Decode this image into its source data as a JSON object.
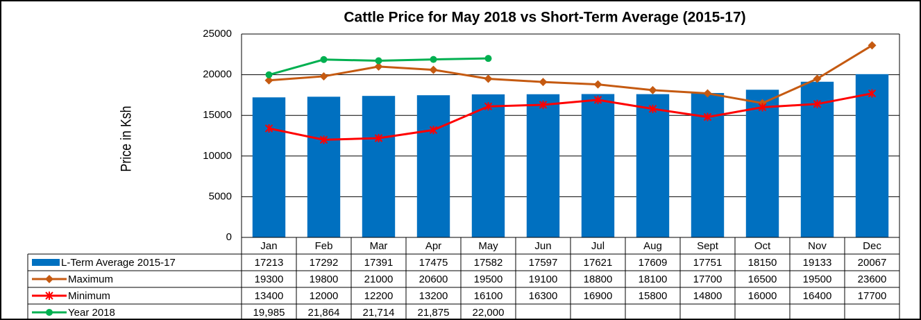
{
  "chart_data": {
    "type": "bar_line_table",
    "title": "Cattle Price for May  2018 vs Short-Term Average (2015-17)",
    "ylabel": "Price in Ksh",
    "categories": [
      "Jan",
      "Feb",
      "Mar",
      "Apr",
      "May",
      "Jun",
      "Jul",
      "Aug",
      "Sept",
      "Oct",
      "Nov",
      "Dec"
    ],
    "ylim": [
      0,
      25000
    ],
    "yticks": [
      0,
      5000,
      10000,
      15000,
      20000,
      25000
    ],
    "grid": true,
    "series": [
      {
        "name": "L-Term  Average 2015-17",
        "type": "bar",
        "color": "#0070c0",
        "values": [
          17213,
          17292,
          17391,
          17475,
          17582,
          17597,
          17621,
          17609,
          17751,
          18150,
          19133,
          20067
        ]
      },
      {
        "name": "Maximum",
        "type": "line",
        "marker": "diamond",
        "color": "#c55a11",
        "values": [
          19300,
          19800,
          21000,
          20600,
          19500,
          19100,
          18800,
          18100,
          17700,
          16500,
          19500,
          23600
        ]
      },
      {
        "name": "Minimum",
        "type": "line",
        "marker": "x",
        "color": "#ff0000",
        "values": [
          13400,
          12000,
          12200,
          13200,
          16100,
          16300,
          16900,
          15800,
          14800,
          16000,
          16400,
          17700
        ]
      },
      {
        "name": "Year 2018",
        "type": "line",
        "marker": "circle",
        "color": "#00b050",
        "values": [
          19985,
          21864,
          21714,
          21875,
          22000,
          null,
          null,
          null,
          null,
          null,
          null,
          null
        ],
        "value_labels": [
          "19,985",
          "21,864",
          "21,714",
          "21,875",
          "22,000",
          null,
          null,
          null,
          null,
          null,
          null,
          null
        ]
      }
    ]
  }
}
